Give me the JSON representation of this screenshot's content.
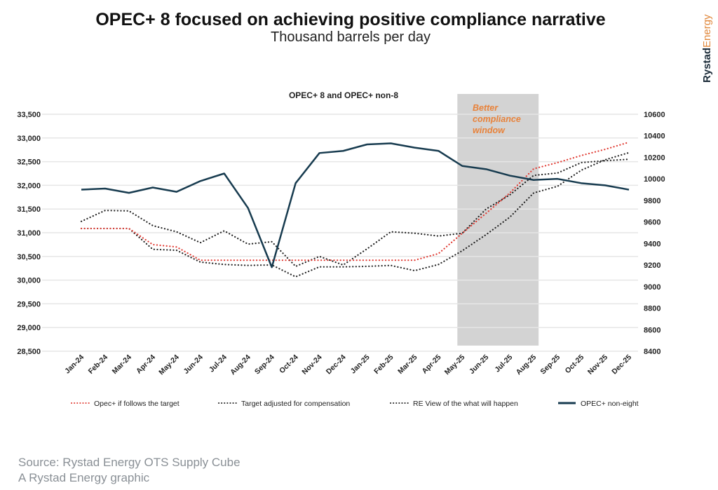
{
  "header": {
    "title": "OPEC+ 8 focused on achieving positive compliance narrative",
    "subtitle": "Thousand barrels per day"
  },
  "logo": {
    "part1": "Rystad",
    "part2": "Energy",
    "colors": [
      "#1d2d3a",
      "#e0873b"
    ]
  },
  "footer": {
    "source": "Source: Rystad Energy OTS Supply Cube",
    "credit": "A Rystad Energy graphic"
  },
  "chart_data": {
    "type": "line",
    "title": "OPEC+ 8 and OPEC+ non-8",
    "categories": [
      "Jan-24",
      "Feb-24",
      "Mar-24",
      "Apr-24",
      "May-24",
      "Jun-24",
      "Jul-24",
      "Aug-24",
      "Sep-24",
      "Oct-24",
      "Nov-24",
      "Dec-24",
      "Jan-25",
      "Feb-25",
      "Mar-25",
      "Apr-25",
      "May-25",
      "Jun-25",
      "Jul-25",
      "Aug-25",
      "Sep-25",
      "Oct-25",
      "Nov-25",
      "Dec-25"
    ],
    "y_left": {
      "range": [
        28500,
        33500
      ],
      "ticks": [
        "28,500",
        "29,000",
        "29,500",
        "30,000",
        "30,500",
        "31,000",
        "31,500",
        "32,000",
        "32,500",
        "33,000",
        "33,500"
      ]
    },
    "y_right": {
      "range": [
        8400,
        10600
      ],
      "ticks": [
        "8400",
        "8600",
        "8800",
        "9000",
        "9200",
        "9400",
        "9600",
        "9800",
        "10000",
        "10200",
        "10400",
        "10600"
      ]
    },
    "grid": true,
    "legend_position": "bottom",
    "annotation": {
      "text": [
        "Better",
        "compliance",
        "window"
      ],
      "color": "#e8823a",
      "band": [
        "May-25",
        "Aug-25"
      ],
      "band_color": "#d3d3d3"
    },
    "series": [
      {
        "name": "Opec+ if follows the target",
        "axis": "left",
        "style": "dotted",
        "color": "#e03a32",
        "values": [
          31090,
          31090,
          31090,
          30750,
          30700,
          30420,
          30420,
          30420,
          30420,
          30420,
          30420,
          30420,
          30420,
          30420,
          30420,
          30560,
          30990,
          31410,
          31840,
          32350,
          32480,
          32630,
          32760,
          32910
        ]
      },
      {
        "name": "Target adjusted for compensation",
        "axis": "left",
        "style": "dotted",
        "color": "#222222",
        "values": [
          31090,
          31090,
          31090,
          30650,
          30630,
          30380,
          30330,
          30310,
          30320,
          30070,
          30280,
          30280,
          30290,
          30310,
          30200,
          30330,
          30620,
          30960,
          31330,
          31840,
          31980,
          32320,
          32540,
          32690
        ]
      },
      {
        "name": "RE View of the what will happen",
        "axis": "left",
        "style": "dotted",
        "color": "#222222",
        "values": [
          31240,
          31470,
          31460,
          31150,
          31020,
          30790,
          31040,
          30760,
          30810,
          30290,
          30500,
          30320,
          30660,
          31020,
          30990,
          30930,
          30990,
          31500,
          31800,
          32210,
          32260,
          32480,
          32520,
          32550
        ]
      },
      {
        "name": "OPEC+ non-eight",
        "axis": "right",
        "style": "solid",
        "color": "#173b4f",
        "values": [
          9900,
          9910,
          9870,
          9920,
          9880,
          9980,
          10050,
          9730,
          9180,
          9960,
          10240,
          10260,
          10320,
          10330,
          10290,
          10260,
          10120,
          10090,
          10030,
          9990,
          10000,
          9960,
          9940,
          9900
        ]
      }
    ]
  }
}
